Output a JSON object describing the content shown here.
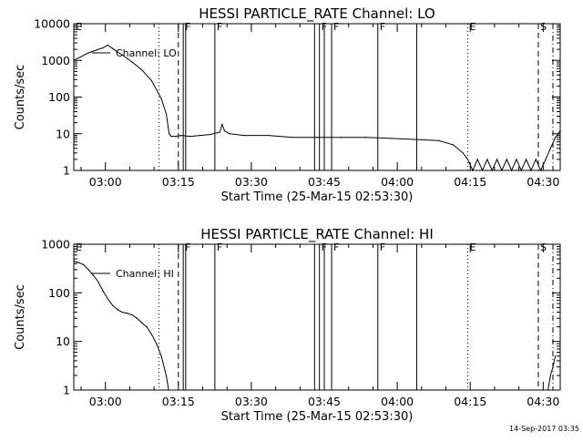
{
  "chart_data": [
    {
      "type": "line",
      "title": "HESSI PARTICLE_RATE Channel: LO",
      "xlabel": "Start Time (25-Mar-15 02:53:30)",
      "ylabel": "Counts/sec",
      "yscale": "log",
      "ylim": [
        1,
        10000
      ],
      "xlim_minutes_after_start": [
        0,
        100
      ],
      "xticks": [
        "03:00",
        "03:15",
        "03:30",
        "03:45",
        "04:00",
        "04:15",
        "04:30"
      ],
      "yticks": [
        "1",
        "10",
        "100",
        "1000",
        "10000"
      ],
      "grid": false,
      "legend_position": "top-left",
      "series": [
        {
          "name": "Channel: LO",
          "x": [
            0,
            3,
            6,
            7,
            8,
            9,
            10,
            12,
            14,
            16,
            18,
            19,
            19.6,
            20,
            21,
            22,
            24,
            26,
            28,
            30,
            30.5,
            31,
            32,
            35,
            40,
            45,
            50,
            55,
            60,
            65,
            70,
            75,
            78,
            80,
            81,
            82,
            83,
            84,
            85,
            86,
            87,
            88,
            89,
            90,
            91,
            92,
            93,
            94,
            95,
            96,
            97,
            98,
            99,
            100
          ],
          "y": [
            1000,
            1600,
            2200,
            2600,
            2100,
            1700,
            1400,
            900,
            550,
            280,
            90,
            35,
            10,
            8.5,
            8.5,
            9,
            8.5,
            9,
            9.5,
            11,
            18,
            12,
            10,
            9,
            9,
            8,
            8,
            8,
            8,
            7.5,
            7,
            6.5,
            5,
            3,
            2,
            1,
            2,
            1,
            2,
            1,
            2,
            1,
            2,
            1,
            2,
            1,
            2,
            1,
            2,
            1,
            2,
            4,
            8,
            12
          ]
        }
      ],
      "event_lines": [
        {
          "label": "E",
          "minute": 0,
          "style": "solid"
        },
        {
          "label": "",
          "minute": 17.5,
          "style": "dotted"
        },
        {
          "label": "",
          "minute": 21.5,
          "style": "dashed"
        },
        {
          "label": "F",
          "minute": 22.5,
          "style": "solid"
        },
        {
          "label": "",
          "minute": 23,
          "style": "solid"
        },
        {
          "label": "F",
          "minute": 29,
          "style": "solid"
        },
        {
          "label": "",
          "minute": 49.5,
          "style": "solid"
        },
        {
          "label": "F",
          "minute": 50.5,
          "style": "solid"
        },
        {
          "label": "",
          "minute": 51.5,
          "style": "solid"
        },
        {
          "label": "F",
          "minute": 53,
          "style": "solid"
        },
        {
          "label": "F",
          "minute": 62.5,
          "style": "solid"
        },
        {
          "label": "",
          "minute": 70.5,
          "style": "solid"
        },
        {
          "label": "E",
          "minute": 81,
          "style": "dotted"
        },
        {
          "label": "S",
          "minute": 95.5,
          "style": "dashed"
        },
        {
          "label": "",
          "minute": 98.5,
          "style": "dashdot"
        }
      ]
    },
    {
      "type": "line",
      "title": "HESSI PARTICLE_RATE Channel: HI",
      "xlabel": "Start Time (25-Mar-15 02:53:30)",
      "ylabel": "Counts/sec",
      "yscale": "log",
      "ylim": [
        1,
        1000
      ],
      "xlim_minutes_after_start": [
        0,
        100
      ],
      "xticks": [
        "03:00",
        "03:15",
        "03:30",
        "03:45",
        "04:00",
        "04:15",
        "04:30"
      ],
      "yticks": [
        "1",
        "10",
        "100",
        "1000"
      ],
      "grid": false,
      "legend_position": "top-left",
      "series": [
        {
          "name": "Channel: HI",
          "x": [
            0,
            1,
            2,
            3,
            4,
            5,
            6,
            7,
            8,
            9,
            10,
            11,
            12,
            13,
            14,
            15,
            16,
            17,
            18,
            19,
            19.5,
            97.5,
            98,
            98.5,
            99
          ],
          "y": [
            450,
            420,
            380,
            300,
            230,
            170,
            110,
            75,
            55,
            45,
            40,
            38,
            35,
            30,
            24,
            20,
            14,
            9,
            5,
            2,
            1,
            1,
            2,
            3,
            5
          ]
        }
      ],
      "event_lines": [
        {
          "label": "E",
          "minute": 0,
          "style": "solid"
        },
        {
          "label": "",
          "minute": 17.5,
          "style": "dotted"
        },
        {
          "label": "",
          "minute": 21.5,
          "style": "dashed"
        },
        {
          "label": "F",
          "minute": 22.5,
          "style": "solid"
        },
        {
          "label": "",
          "minute": 23,
          "style": "solid"
        },
        {
          "label": "F",
          "minute": 29,
          "style": "solid"
        },
        {
          "label": "",
          "minute": 49.5,
          "style": "solid"
        },
        {
          "label": "F",
          "minute": 50.5,
          "style": "solid"
        },
        {
          "label": "",
          "minute": 51.5,
          "style": "solid"
        },
        {
          "label": "F",
          "minute": 53,
          "style": "solid"
        },
        {
          "label": "F",
          "minute": 62.5,
          "style": "solid"
        },
        {
          "label": "",
          "minute": 70.5,
          "style": "solid"
        },
        {
          "label": "E",
          "minute": 81,
          "style": "dotted"
        },
        {
          "label": "S",
          "minute": 95.5,
          "style": "dashed"
        },
        {
          "label": "",
          "minute": 98.5,
          "style": "dashdot"
        }
      ]
    }
  ],
  "footer": {
    "timestamp": "14-Sep-2017 03:35"
  },
  "colors": {
    "background": "#ffffff",
    "ink": "#000000"
  }
}
